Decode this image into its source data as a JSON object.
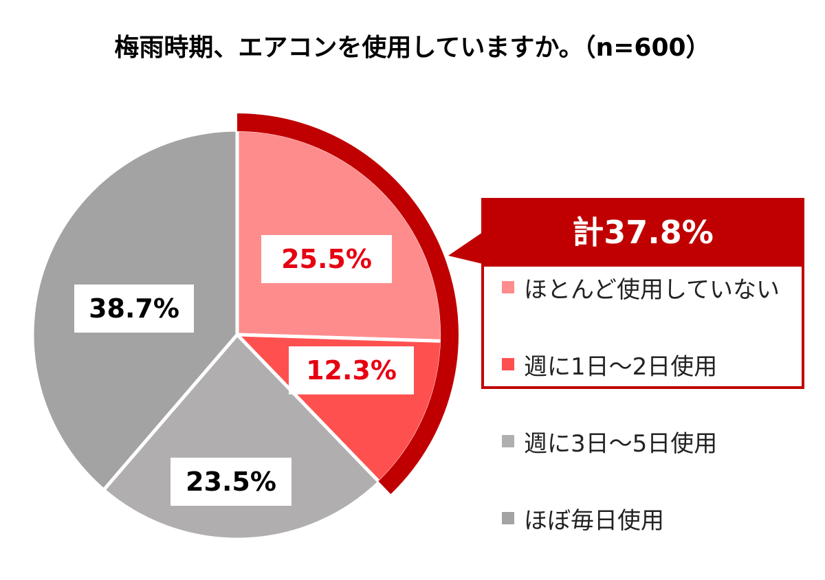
{
  "chart_data": {
    "type": "pie",
    "title": "梅雨時期、エアコンを使用していますか。（n=600）",
    "start_angle_deg": 0,
    "direction": "clockwise",
    "slices": [
      {
        "name": "ほとんど使用していない",
        "value": 25.5,
        "label": "25.5%",
        "color": "#ff8c8c",
        "label_color": "#e60012",
        "highlighted": true
      },
      {
        "name": "週に1日～2日使用",
        "value": 12.3,
        "label": "12.3%",
        "color": "#ff5050",
        "label_color": "#e60012",
        "highlighted": true
      },
      {
        "name": "週に3日～5日使用",
        "value": 23.5,
        "label": "23.5%",
        "color": "#b0aeae",
        "label_color": "#000000",
        "highlighted": false
      },
      {
        "name": "ほぼ毎日使用",
        "value": 38.7,
        "label": "38.7%",
        "color": "#a3a3a3",
        "label_color": "#000000",
        "highlighted": false
      }
    ],
    "legend": {
      "placement": "right",
      "items": [
        {
          "label": "ほとんど使用していない",
          "color": "#ff8c8c"
        },
        {
          "label": "週に1日～2日使用",
          "color": "#ff5050"
        },
        {
          "label": "週に3日～5日使用",
          "color": "#b0aeae"
        },
        {
          "label": "ほぼ毎日使用",
          "color": "#a3a3a3"
        }
      ]
    },
    "annotation": {
      "text": "計37.8%",
      "value": 37.8,
      "covers": [
        "ほとんど使用していない",
        "週に1日～2日使用"
      ],
      "color": "#c00000"
    }
  }
}
